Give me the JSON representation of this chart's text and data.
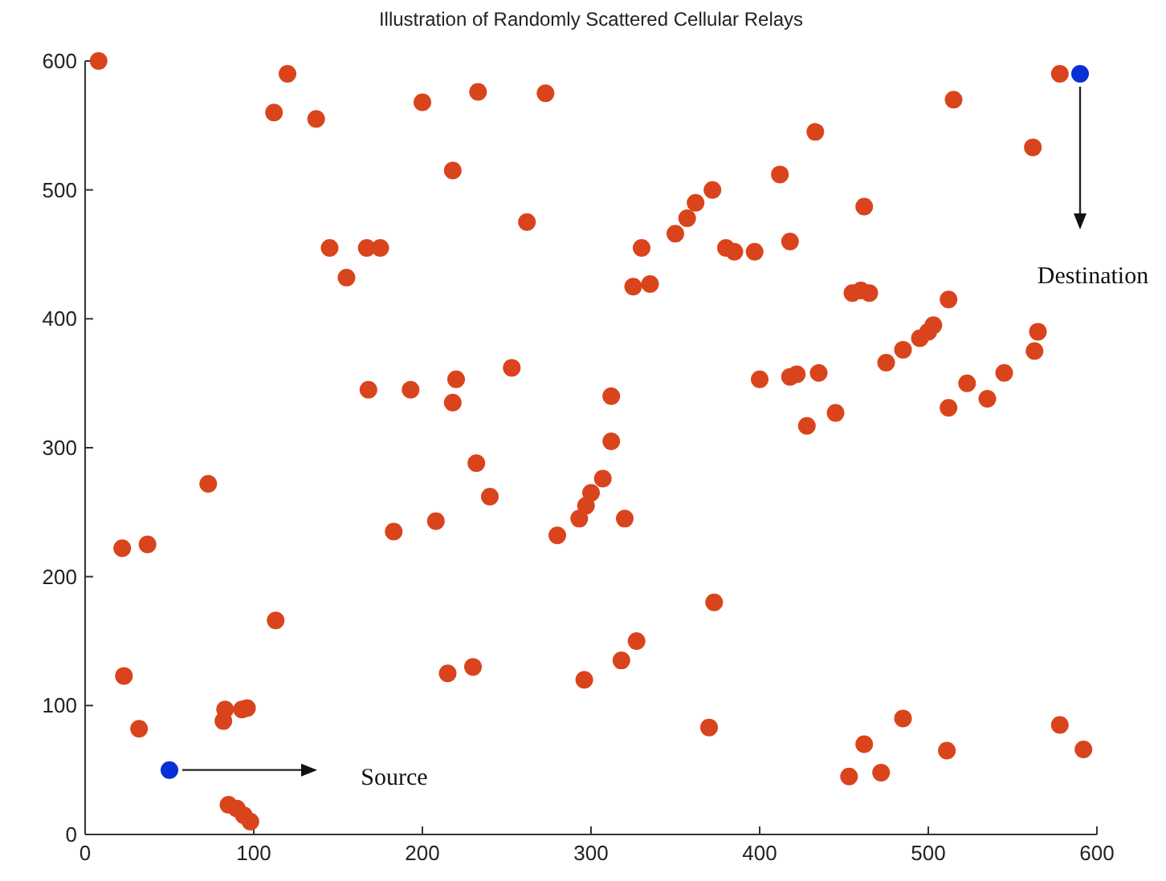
{
  "chart_data": {
    "type": "scatter",
    "title": "Illustration of Randomly Scattered Cellular Relays",
    "xlim": [
      0,
      600
    ],
    "ylim": [
      0,
      600
    ],
    "xticks": [
      0,
      100,
      200,
      300,
      400,
      500,
      600
    ],
    "yticks": [
      0,
      100,
      200,
      300,
      400,
      500,
      600
    ],
    "grid": false,
    "marker": "circle",
    "series": [
      {
        "color": "#d9441c",
        "x": [
          8,
          112,
          120,
          137,
          200,
          233,
          273,
          218,
          262,
          145,
          167,
          175,
          155,
          168,
          193,
          220,
          218,
          253,
          73,
          232,
          240,
          208,
          183,
          280,
          293,
          297,
          300,
          307,
          312,
          312,
          320,
          22,
          37,
          113,
          23,
          32,
          82,
          83,
          93,
          96,
          85,
          90,
          94,
          98,
          215,
          230,
          296,
          318,
          327,
          373,
          370,
          453,
          462,
          472,
          485,
          511,
          578,
          592,
          372,
          362,
          357,
          350,
          330,
          325,
          335,
          380,
          385,
          397,
          412,
          418,
          433,
          462,
          455,
          460,
          465,
          400,
          418,
          422,
          435,
          428,
          445,
          475,
          485,
          495,
          500,
          503,
          512,
          512,
          523,
          535,
          545,
          563,
          565,
          562,
          515,
          578
        ],
        "values": [
          600,
          560,
          590,
          555,
          568,
          576,
          575,
          515,
          475,
          455,
          455,
          455,
          432,
          345,
          345,
          353,
          335,
          362,
          272,
          288,
          262,
          243,
          235,
          232,
          245,
          255,
          265,
          276,
          305,
          340,
          245,
          222,
          225,
          166,
          123,
          82,
          88,
          97,
          97,
          98,
          23,
          20,
          15,
          10,
          125,
          130,
          120,
          135,
          150,
          180,
          83,
          45,
          70,
          48,
          90,
          65,
          85,
          66,
          500,
          490,
          478,
          466,
          455,
          425,
          427,
          455,
          452,
          452,
          512,
          460,
          545,
          487,
          420,
          422,
          420,
          353,
          355,
          357,
          358,
          317,
          327,
          366,
          376,
          385,
          390,
          395,
          415,
          331,
          350,
          338,
          358,
          375,
          390,
          533,
          570,
          590
        ]
      },
      {
        "color": "#0b2fd6",
        "x": [
          50,
          590
        ],
        "values": [
          50,
          590
        ]
      }
    ],
    "annotations": [
      "Source",
      "Destination"
    ]
  }
}
